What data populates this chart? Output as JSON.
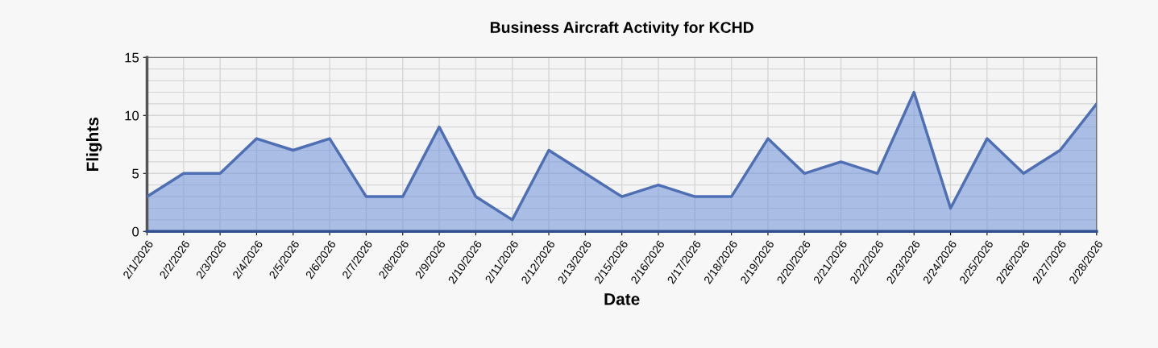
{
  "chart_data": {
    "type": "area",
    "title": "Business Aircraft Activity for KCHD",
    "xlabel": "Date",
    "ylabel": "Flights",
    "categories": [
      "2/1/2026",
      "2/2/2026",
      "2/3/2026",
      "2/4/2026",
      "2/5/2026",
      "2/6/2026",
      "2/7/2026",
      "2/8/2026",
      "2/9/2026",
      "2/10/2026",
      "2/11/2026",
      "2/12/2026",
      "2/13/2026",
      "2/15/2026",
      "2/16/2026",
      "2/17/2026",
      "2/18/2026",
      "2/19/2026",
      "2/20/2026",
      "2/21/2026",
      "2/22/2026",
      "2/23/2026",
      "2/24/2026",
      "2/25/2026",
      "2/26/2026",
      "2/27/2026",
      "2/28/2026"
    ],
    "series": [
      {
        "color": "#6d8fd9",
        "values": [
          3,
          5,
          5,
          8,
          7,
          8,
          3,
          3,
          9,
          3,
          1,
          7,
          5,
          3,
          4,
          3,
          3,
          8,
          5,
          6,
          5,
          12,
          2,
          8,
          5,
          7,
          11
        ]
      }
    ],
    "ylim": [
      0,
      15
    ],
    "yticks": [
      0,
      5,
      10,
      15
    ],
    "grid": true
  }
}
